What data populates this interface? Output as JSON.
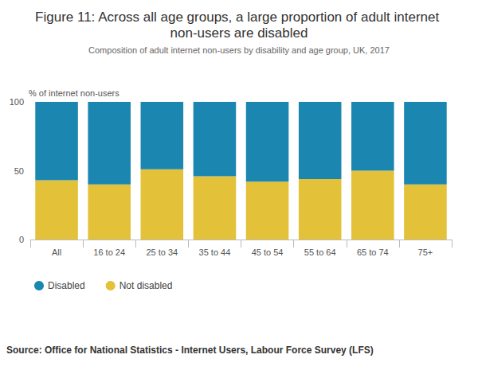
{
  "chart_data": {
    "type": "bar",
    "title": "Figure 11: Across all age groups, a large proportion of adult internet non-users are disabled",
    "subtitle": "Composition of adult internet non-users by disability and age group, UK, 2017",
    "ylabel": "% of internet non-users",
    "source": "Source: Office for National Statistics - Internet Users, Labour Force Survey (LFS)",
    "categories": [
      "All",
      "16 to 24",
      "25 to 34",
      "35 to 44",
      "45 to 54",
      "55 to 64",
      "65 to 74",
      "75+"
    ],
    "series": [
      {
        "name": "Disabled",
        "color": "#1b87b1",
        "values": [
          57,
          60,
          49,
          54,
          58,
          56,
          50,
          60
        ]
      },
      {
        "name": "Not disabled",
        "color": "#e3c139",
        "values": [
          43,
          40,
          51,
          46,
          42,
          44,
          50,
          40
        ]
      }
    ],
    "stacked": true,
    "ylim": [
      0,
      100
    ],
    "yticks": [
      0,
      50,
      100
    ],
    "grid": false,
    "legend": "bottom-left"
  }
}
